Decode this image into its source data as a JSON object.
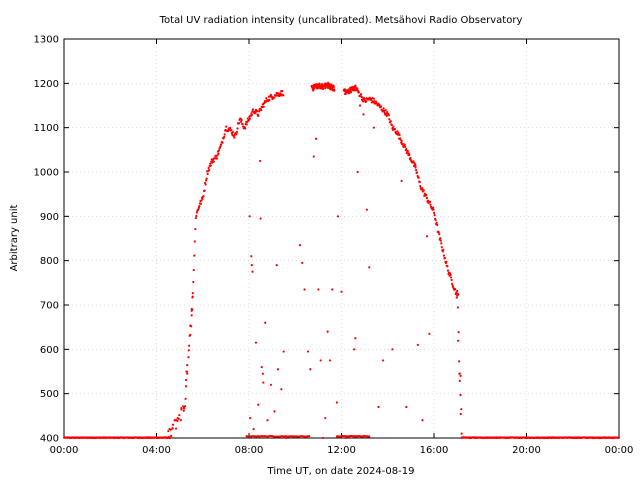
{
  "chart_data": {
    "type": "scatter",
    "title": "Total UV radiation intensity (uncalibrated). Metsähovi Radio Observatory",
    "xlabel": "Time UT, on date 2024-08-19",
    "ylabel": "Arbitrary unit",
    "xlim": [
      0,
      24
    ],
    "ylim": [
      400,
      1300
    ],
    "x_ticks": [
      {
        "value": 0,
        "label": "00:00"
      },
      {
        "value": 4,
        "label": "04:00"
      },
      {
        "value": 8,
        "label": "08:00"
      },
      {
        "value": 12,
        "label": "12:00"
      },
      {
        "value": 16,
        "label": "16:00"
      },
      {
        "value": 20,
        "label": "20:00"
      },
      {
        "value": 24,
        "label": "00:00"
      }
    ],
    "y_ticks": [
      {
        "value": 400,
        "label": "400"
      },
      {
        "value": 500,
        "label": "500"
      },
      {
        "value": 600,
        "label": "600"
      },
      {
        "value": 700,
        "label": "700"
      },
      {
        "value": 800,
        "label": "800"
      },
      {
        "value": 900,
        "label": "900"
      },
      {
        "value": 1000,
        "label": "1000"
      },
      {
        "value": 1100,
        "label": "1100"
      },
      {
        "value": 1200,
        "label": "1200"
      },
      {
        "value": 1300,
        "label": "1300"
      }
    ],
    "grid": true,
    "series_color": "#ff0000",
    "envelope": [
      [
        4.6,
        400
      ],
      [
        4.8,
        410
      ],
      [
        5.0,
        430
      ],
      [
        5.2,
        470
      ],
      [
        5.4,
        560
      ],
      [
        5.55,
        700
      ],
      [
        5.7,
        900
      ],
      [
        5.85,
        925
      ],
      [
        6.0,
        940
      ],
      [
        6.2,
        1000
      ],
      [
        6.4,
        1025
      ],
      [
        6.6,
        1035
      ],
      [
        6.8,
        1060
      ],
      [
        7.0,
        1100
      ],
      [
        7.2,
        1095
      ],
      [
        7.4,
        1080
      ],
      [
        7.6,
        1120
      ],
      [
        7.8,
        1100
      ],
      [
        8.0,
        1120
      ],
      [
        8.2,
        1140
      ],
      [
        8.4,
        1130
      ],
      [
        8.6,
        1150
      ],
      [
        8.8,
        1165
      ],
      [
        9.0,
        1170
      ],
      [
        9.2,
        1175
      ],
      [
        9.4,
        1178
      ],
      [
        10.8,
        1190
      ],
      [
        11.0,
        1195
      ],
      [
        11.2,
        1192
      ],
      [
        11.4,
        1196
      ],
      [
        11.6,
        1190
      ],
      [
        12.2,
        1180
      ],
      [
        12.4,
        1185
      ],
      [
        12.6,
        1190
      ],
      [
        12.8,
        1175
      ],
      [
        13.0,
        1160
      ],
      [
        13.2,
        1165
      ],
      [
        13.4,
        1160
      ],
      [
        13.6,
        1150
      ],
      [
        13.8,
        1140
      ],
      [
        14.0,
        1130
      ],
      [
        14.2,
        1100
      ],
      [
        14.4,
        1090
      ],
      [
        14.6,
        1070
      ],
      [
        14.8,
        1050
      ],
      [
        15.0,
        1030
      ],
      [
        15.2,
        1010
      ],
      [
        15.4,
        970
      ],
      [
        15.6,
        950
      ],
      [
        15.8,
        930
      ],
      [
        16.0,
        910
      ],
      [
        16.2,
        860
      ],
      [
        16.4,
        820
      ],
      [
        16.6,
        780
      ],
      [
        16.8,
        750
      ],
      [
        17.0,
        720
      ]
    ],
    "gaps": [
      [
        9.5,
        10.7
      ],
      [
        11.7,
        12.1
      ]
    ],
    "dense_intervals": [
      {
        "from": 5.5,
        "to": 17.05,
        "count": 520
      },
      {
        "from": 10.75,
        "to": 11.75,
        "count": 45
      },
      {
        "from": 12.1,
        "to": 12.6,
        "count": 25
      }
    ],
    "ramps": [
      {
        "from": 4.5,
        "to": 5.2,
        "y_from": 402,
        "y_to": 470,
        "count": 22
      },
      {
        "from": 5.2,
        "to": 5.55,
        "y_from": 470,
        "y_to": 720,
        "count": 20
      },
      {
        "from": 17.0,
        "to": 17.2,
        "y_from": 720,
        "y_to": 420,
        "count": 10
      }
    ],
    "baseline_intervals": [
      {
        "from": 0.0,
        "to": 4.6,
        "value": 400,
        "count": 220
      },
      {
        "from": 17.2,
        "to": 24.0,
        "value": 400,
        "count": 320
      },
      {
        "from": 7.9,
        "to": 10.6,
        "value": 403,
        "count": 40
      },
      {
        "from": 11.8,
        "to": 13.2,
        "value": 403,
        "count": 30
      }
    ],
    "outliers": [
      [
        8.03,
        900
      ],
      [
        8.1,
        810
      ],
      [
        8.12,
        790
      ],
      [
        8.15,
        775
      ],
      [
        8.05,
        445
      ],
      [
        8.2,
        420
      ],
      [
        8.3,
        615
      ],
      [
        8.4,
        475
      ],
      [
        8.48,
        1025
      ],
      [
        8.5,
        895
      ],
      [
        8.55,
        560
      ],
      [
        8.6,
        545
      ],
      [
        8.62,
        525
      ],
      [
        8.7,
        660
      ],
      [
        8.8,
        440
      ],
      [
        8.95,
        520
      ],
      [
        9.1,
        460
      ],
      [
        9.2,
        790
      ],
      [
        9.25,
        555
      ],
      [
        9.4,
        510
      ],
      [
        9.5,
        595
      ],
      [
        9.6,
        400
      ],
      [
        10.2,
        835
      ],
      [
        10.3,
        795
      ],
      [
        10.4,
        735
      ],
      [
        10.55,
        595
      ],
      [
        10.65,
        555
      ],
      [
        10.8,
        1035
      ],
      [
        10.9,
        1075
      ],
      [
        11.0,
        735
      ],
      [
        11.1,
        575
      ],
      [
        11.2,
        400
      ],
      [
        11.3,
        445
      ],
      [
        11.4,
        640
      ],
      [
        11.5,
        575
      ],
      [
        11.6,
        735
      ],
      [
        11.8,
        480
      ],
      [
        11.85,
        900
      ],
      [
        12.0,
        730
      ],
      [
        12.2,
        400
      ],
      [
        12.55,
        600
      ],
      [
        12.6,
        625
      ],
      [
        12.7,
        1000
      ],
      [
        12.8,
        1150
      ],
      [
        12.95,
        1130
      ],
      [
        13.1,
        915
      ],
      [
        13.2,
        785
      ],
      [
        13.4,
        1100
      ],
      [
        13.6,
        470
      ],
      [
        13.8,
        575
      ],
      [
        14.2,
        600
      ],
      [
        14.6,
        980
      ],
      [
        14.8,
        470
      ],
      [
        15.2,
        1010
      ],
      [
        15.3,
        610
      ],
      [
        15.5,
        440
      ],
      [
        15.7,
        855
      ],
      [
        15.8,
        635
      ],
      [
        17.1,
        545
      ],
      [
        17.15,
        540
      ],
      [
        17.18,
        465
      ]
    ]
  }
}
